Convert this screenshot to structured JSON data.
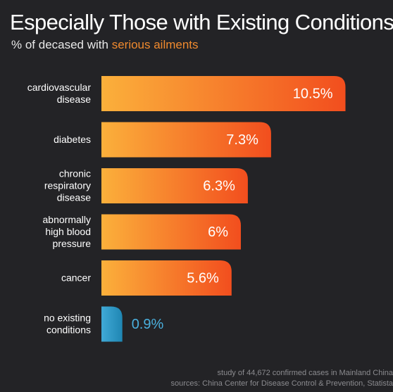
{
  "title": "Especially Those with Existing Conditions",
  "subtitle": {
    "prefix": "% of decased with ",
    "highlight": "serious ailments"
  },
  "colors": {
    "background": "#232326",
    "bar_start": "#fbb03b",
    "bar_end": "#f24e1e",
    "no_condition_start": "#40a9d6",
    "no_condition_end": "#1f86b3",
    "label_orange": "#ffffff",
    "label_blue": "#4ab0de",
    "highlight": "#f08a2e"
  },
  "chart_data": {
    "type": "bar",
    "orientation": "horizontal",
    "categories": [
      [
        "cardiovascular",
        "disease"
      ],
      [
        "diabetes"
      ],
      [
        "chronic",
        "respiratory",
        "disease"
      ],
      [
        "abnormally",
        "high blood",
        "pressure"
      ],
      [
        "cancer"
      ],
      [
        "no existing",
        "conditions"
      ]
    ],
    "values": [
      10.5,
      7.3,
      6.3,
      6,
      5.6,
      0.9
    ],
    "value_labels": [
      "10.5%",
      "7.3%",
      "6.3%",
      "6%",
      "5.6%",
      "0.9%"
    ],
    "xlim": [
      0,
      12
    ]
  },
  "footer": {
    "line1": "study of 44,672 confirmed cases in Mainland China",
    "line2": "sources: China Center for Disease Control & Prevention, Statista"
  }
}
